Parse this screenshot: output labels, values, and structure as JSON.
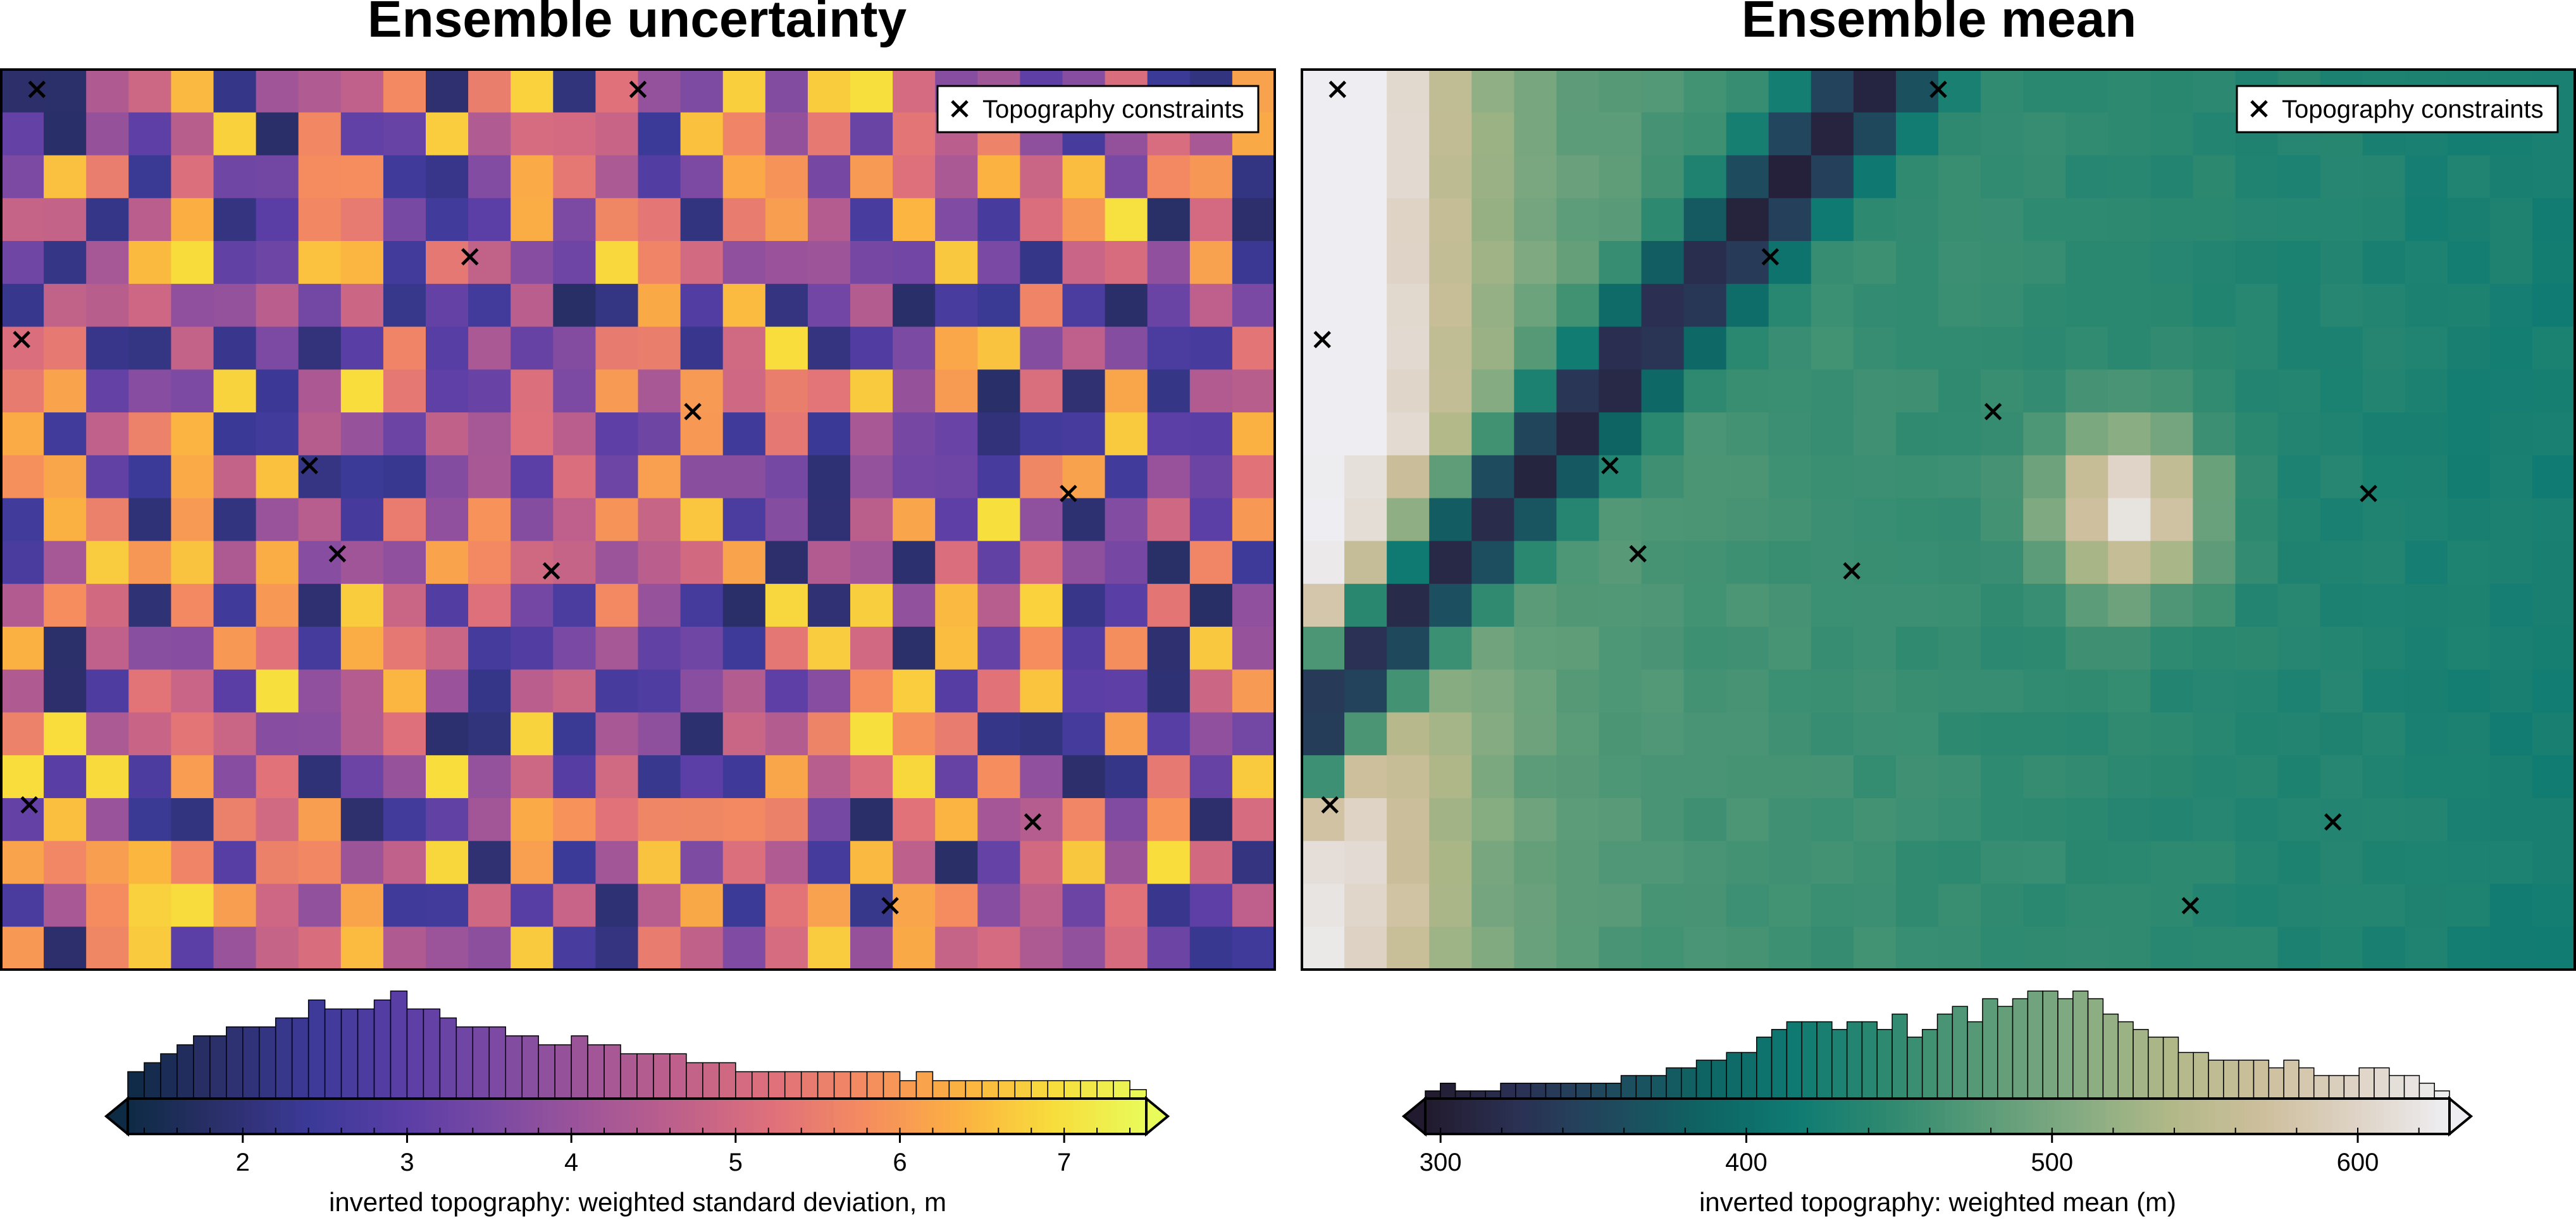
{
  "chart_data": [
    {
      "type": "heatmap",
      "title": "Ensemble uncertainty",
      "legend": {
        "entries": [
          "Topography constraints"
        ],
        "placement": "top-right"
      },
      "colormap": "plasma-like",
      "colorbar": {
        "label": "inverted topography: weighted standard deviation, m",
        "range": [
          1.3,
          7.5
        ],
        "ticks": [
          "2",
          "3",
          "4",
          "5",
          "6",
          "7"
        ],
        "tick_values": [
          2,
          3,
          4,
          5,
          6,
          7
        ],
        "extend": "both",
        "histogram_counts": [
          3,
          4,
          5,
          6,
          7,
          7,
          8,
          8,
          8,
          9,
          9,
          11,
          10,
          10,
          10,
          11,
          12,
          10,
          10,
          9,
          8,
          8,
          8,
          7,
          7,
          6,
          6,
          7,
          6,
          6,
          5,
          5,
          5,
          5,
          4,
          4,
          4,
          3,
          3,
          3,
          3,
          3,
          3,
          3,
          3,
          3,
          3,
          2,
          3,
          2,
          2,
          2,
          2,
          2,
          2,
          2,
          2,
          2,
          2,
          2,
          2,
          1
        ]
      },
      "grid": {
        "rows": 21,
        "cols": 30
      },
      "constraints_xy_fraction": [
        [
          0.028,
          0.022
        ],
        [
          0.5,
          0.022
        ],
        [
          0.368,
          0.208
        ],
        [
          0.016,
          0.3
        ],
        [
          0.543,
          0.38
        ],
        [
          0.242,
          0.44
        ],
        [
          0.838,
          0.471
        ],
        [
          0.264,
          0.538
        ],
        [
          0.432,
          0.557
        ],
        [
          0.022,
          0.817
        ],
        [
          0.81,
          0.836
        ],
        [
          0.698,
          0.929
        ]
      ]
    },
    {
      "type": "heatmap",
      "title": "Ensemble mean",
      "legend": {
        "entries": [
          "Topography constraints"
        ],
        "placement": "top-right"
      },
      "colormap": "rain-like (dark navy → teal → green → tan → white)",
      "colorbar": {
        "label": "inverted topography: weighted mean (m)",
        "range": [
          295,
          630
        ],
        "ticks": [
          "300",
          "400",
          "500",
          "600"
        ],
        "tick_values": [
          300,
          400,
          500,
          600
        ],
        "extend": "both",
        "histogram_counts": [
          1,
          2,
          1,
          1,
          1,
          2,
          2,
          2,
          2,
          2,
          2,
          2,
          2,
          3,
          3,
          3,
          4,
          4,
          5,
          5,
          6,
          6,
          8,
          9,
          10,
          10,
          10,
          9,
          10,
          10,
          9,
          11,
          8,
          9,
          11,
          12,
          10,
          13,
          12,
          13,
          14,
          14,
          13,
          14,
          13,
          11,
          10,
          9,
          8,
          8,
          6,
          6,
          5,
          5,
          5,
          5,
          4,
          5,
          4,
          3,
          3,
          3,
          4,
          4,
          3,
          3,
          2,
          1
        ]
      },
      "grid": {
        "rows": 21,
        "cols": 30
      },
      "constraints_xy_fraction": [
        [
          0.028,
          0.022
        ],
        [
          0.5,
          0.022
        ],
        [
          0.368,
          0.208
        ],
        [
          0.016,
          0.3
        ],
        [
          0.543,
          0.38
        ],
        [
          0.242,
          0.44
        ],
        [
          0.838,
          0.471
        ],
        [
          0.264,
          0.538
        ],
        [
          0.432,
          0.557
        ],
        [
          0.022,
          0.817
        ],
        [
          0.81,
          0.836
        ],
        [
          0.698,
          0.929
        ]
      ]
    }
  ],
  "colors": {
    "marker": "#000000",
    "frame": "#000000",
    "plasma": [
      "#0d2b45",
      "#2c2f6b",
      "#3c3a99",
      "#5a3ea6",
      "#7c4aa3",
      "#a05598",
      "#c0618a",
      "#e0717a",
      "#f58d5e",
      "#fbb141",
      "#f8dd3c",
      "#e8fb5a"
    ],
    "rain": [
      "#221a2e",
      "#2b3154",
      "#1f4a5e",
      "#0e6463",
      "#0f7b72",
      "#2f8a70",
      "#5a9b78",
      "#84ab82",
      "#b1b888",
      "#cdbf9c",
      "#ded3c5",
      "#eeeef2"
    ]
  }
}
